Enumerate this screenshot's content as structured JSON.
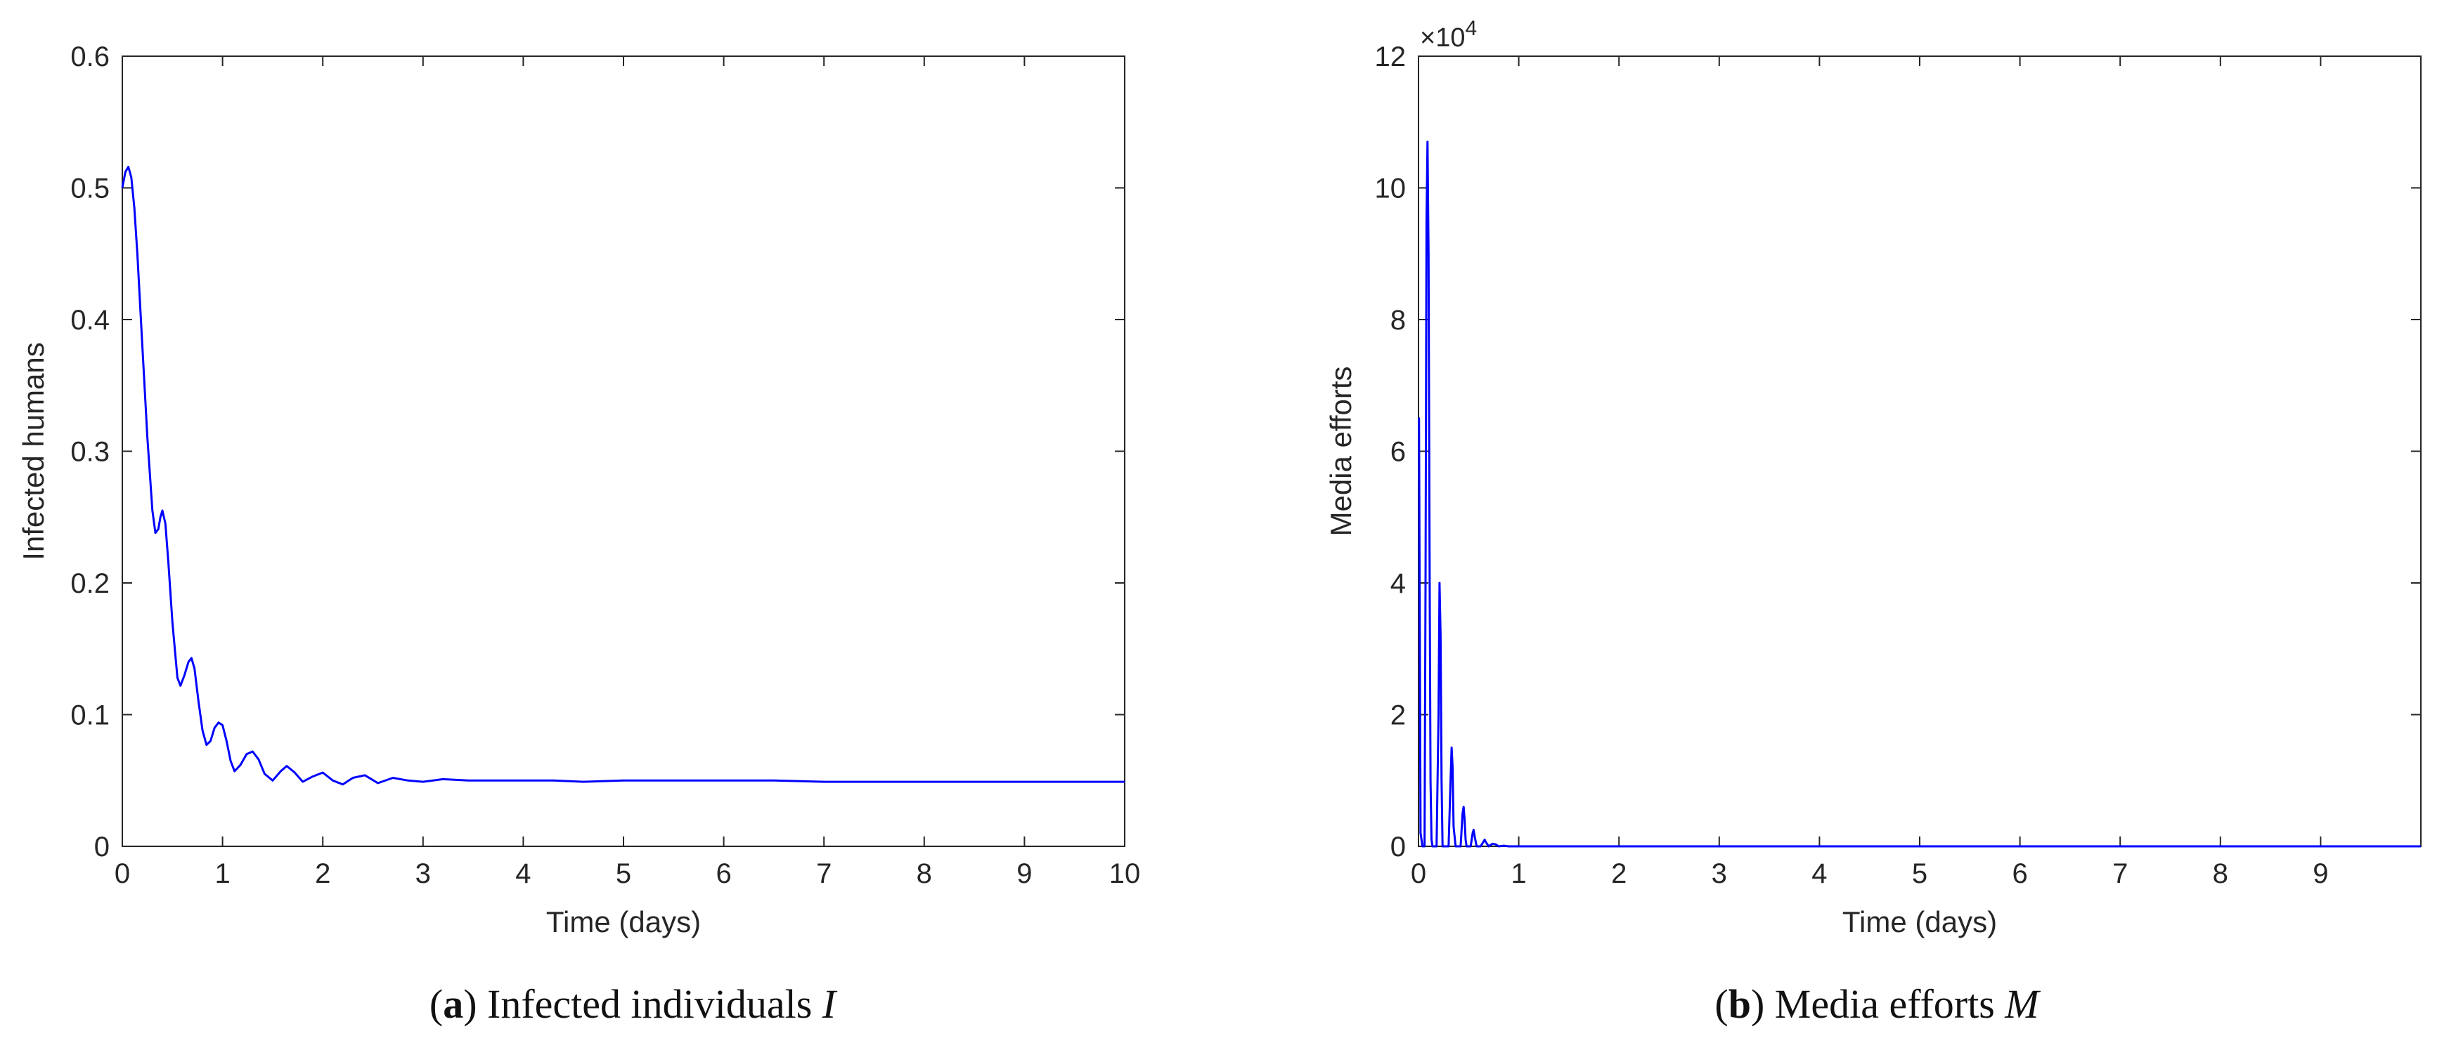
{
  "colors": {
    "line": "#0000ff",
    "axis": "#262626",
    "text": "#262626",
    "background": "#ffffff"
  },
  "captions": [
    {
      "open": "(",
      "tag": "a",
      "close": ")",
      "text": " Infected individuals ",
      "symbol": "I"
    },
    {
      "open": "(",
      "tag": "b",
      "close": ")",
      "text": " Media efforts ",
      "symbol": "M"
    }
  ],
  "chart_data": [
    {
      "type": "line",
      "title": "",
      "xlabel": "Time (days)",
      "ylabel": "Infected humans",
      "xlim": [
        0,
        10
      ],
      "ylim": [
        0,
        0.6
      ],
      "xticks": [
        "0",
        "1",
        "2",
        "3",
        "4",
        "5",
        "6",
        "7",
        "8",
        "9",
        "10"
      ],
      "yticks": [
        "0",
        "0.1",
        "0.2",
        "0.3",
        "0.4",
        "0.5",
        "0.6"
      ],
      "grid": false,
      "series": [
        {
          "x": [
            0,
            0.03,
            0.06,
            0.09,
            0.12,
            0.15,
            0.2,
            0.25,
            0.3,
            0.33,
            0.36,
            0.38,
            0.4,
            0.43,
            0.46,
            0.5,
            0.55,
            0.58,
            0.62,
            0.66,
            0.69,
            0.72,
            0.76,
            0.8,
            0.84,
            0.88,
            0.92,
            0.96,
            1.0,
            1.04,
            1.08,
            1.12,
            1.18,
            1.24,
            1.3,
            1.36,
            1.42,
            1.5,
            1.58,
            1.64,
            1.72,
            1.8,
            1.9,
            2.0,
            2.1,
            2.2,
            2.3,
            2.42,
            2.55,
            2.7,
            2.85,
            3.0,
            3.2,
            3.45,
            3.7,
            4.0,
            4.3,
            4.6,
            5.0,
            5.5,
            6.0,
            6.5,
            7.0,
            8.0,
            9.0,
            10.0
          ],
          "y": [
            0.5,
            0.512,
            0.516,
            0.508,
            0.485,
            0.45,
            0.38,
            0.31,
            0.255,
            0.238,
            0.241,
            0.25,
            0.255,
            0.245,
            0.215,
            0.17,
            0.128,
            0.122,
            0.13,
            0.14,
            0.143,
            0.135,
            0.11,
            0.088,
            0.077,
            0.08,
            0.09,
            0.094,
            0.092,
            0.08,
            0.065,
            0.057,
            0.062,
            0.07,
            0.072,
            0.066,
            0.055,
            0.05,
            0.057,
            0.061,
            0.056,
            0.049,
            0.053,
            0.056,
            0.05,
            0.047,
            0.052,
            0.054,
            0.048,
            0.052,
            0.05,
            0.049,
            0.051,
            0.05,
            0.05,
            0.05,
            0.05,
            0.049,
            0.05,
            0.05,
            0.05,
            0.05,
            0.049,
            0.049,
            0.049,
            0.049
          ]
        }
      ]
    },
    {
      "type": "line",
      "title": "",
      "xlabel": "Time (days)",
      "ylabel": "Media efforts",
      "exponent_label": "×10",
      "exponent_power": "4",
      "xlim": [
        0,
        10
      ],
      "ylim": [
        0,
        12
      ],
      "xticks": [
        "0",
        "1",
        "2",
        "3",
        "4",
        "5",
        "6",
        "7",
        "8",
        "9"
      ],
      "yticks": [
        "0",
        "2",
        "4",
        "6",
        "8",
        "10",
        "12"
      ],
      "grid": false,
      "y_scale_factor": 10000,
      "series": [
        {
          "x": [
            0,
            0.005,
            0.01,
            0.02,
            0.04,
            0.06,
            0.07,
            0.08,
            0.09,
            0.1,
            0.11,
            0.12,
            0.13,
            0.14,
            0.16,
            0.18,
            0.2,
            0.21,
            0.22,
            0.23,
            0.24,
            0.26,
            0.28,
            0.3,
            0.32,
            0.33,
            0.34,
            0.35,
            0.37,
            0.38,
            0.4,
            0.42,
            0.44,
            0.45,
            0.46,
            0.47,
            0.48,
            0.5,
            0.52,
            0.54,
            0.55,
            0.56,
            0.58,
            0.62,
            0.66,
            0.67,
            0.7,
            0.74,
            0.77,
            0.8,
            0.85,
            0.9,
            1.0,
            10.0
          ],
          "y": [
            6.5,
            6.5,
            4.5,
            0.2,
            0,
            0,
            4.0,
            9.5,
            10.7,
            9.0,
            4.5,
            1.0,
            0.1,
            0,
            0,
            0,
            2.0,
            4.0,
            3.2,
            1.0,
            0,
            0,
            0,
            0,
            1.0,
            1.5,
            1.2,
            0.3,
            0,
            0,
            0,
            0,
            0.5,
            0.6,
            0.4,
            0.1,
            0,
            0,
            0,
            0.2,
            0.25,
            0.15,
            0,
            0,
            0.1,
            0.07,
            0,
            0.04,
            0.03,
            0,
            0.01,
            0,
            0,
            0
          ]
        }
      ]
    }
  ]
}
